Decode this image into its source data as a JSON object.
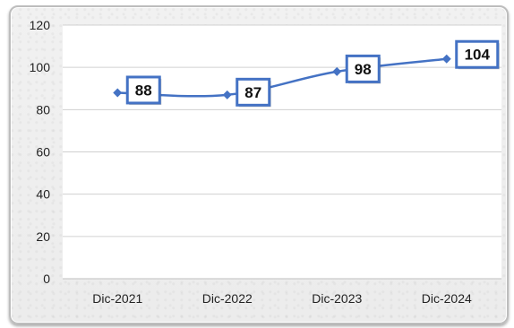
{
  "chart_data": {
    "type": "line",
    "categories": [
      "Dic-2021",
      "Dic-2022",
      "Dic-2023",
      "Dic-2024"
    ],
    "series": [
      {
        "values": [
          88,
          87,
          98,
          104
        ]
      }
    ],
    "data_labels": [
      "88",
      "87",
      "98",
      "104"
    ],
    "yticks": [
      "0",
      "20",
      "40",
      "60",
      "80",
      "100",
      "120"
    ],
    "ylim": [
      0,
      120
    ],
    "grid": true,
    "legend": "none",
    "line_color": "#4472C4",
    "label_border_color": "#4472C4"
  }
}
